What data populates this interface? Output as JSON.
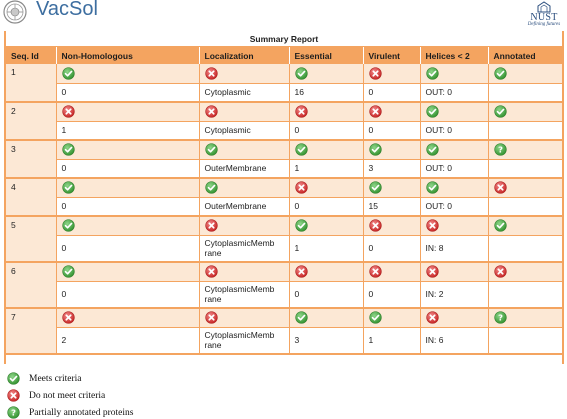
{
  "app": {
    "title": "VacSol"
  },
  "logo_right": {
    "name": "NUST",
    "tagline": "Defining futures"
  },
  "report": {
    "title": "Summary Report",
    "columns": [
      "Seq. Id",
      "Non-Homologous",
      "Localization",
      "Essential",
      "Virulent",
      "Helices < 2",
      "Annotated"
    ],
    "rows": [
      {
        "id": "1",
        "icons": [
          "check",
          "cross",
          "check",
          "cross",
          "check",
          "check"
        ],
        "values": [
          "0",
          "Cytoplasmic",
          "16",
          "0",
          "OUT: 0",
          ""
        ]
      },
      {
        "id": "2",
        "icons": [
          "cross",
          "cross",
          "cross",
          "cross",
          "check",
          "check"
        ],
        "values": [
          "1",
          "Cytoplasmic",
          "0",
          "0",
          "OUT: 0",
          ""
        ]
      },
      {
        "id": "3",
        "icons": [
          "check",
          "check",
          "check",
          "check",
          "check",
          "question"
        ],
        "values": [
          "0",
          "OuterMembrane",
          "1",
          "3",
          "OUT: 0",
          ""
        ]
      },
      {
        "id": "4",
        "icons": [
          "check",
          "check",
          "cross",
          "check",
          "check",
          "cross"
        ],
        "values": [
          "0",
          "OuterMembrane",
          "0",
          "15",
          "OUT: 0",
          ""
        ]
      },
      {
        "id": "5",
        "icons": [
          "check",
          "cross",
          "check",
          "cross",
          "cross",
          "check"
        ],
        "values": [
          "0",
          "CytoplasmicMembrane",
          "1",
          "0",
          "IN: 8",
          ""
        ]
      },
      {
        "id": "6",
        "icons": [
          "check",
          "cross",
          "cross",
          "cross",
          "cross",
          "cross"
        ],
        "values": [
          "0",
          "CytoplasmicMembrane",
          "0",
          "0",
          "IN: 2",
          ""
        ]
      },
      {
        "id": "7",
        "icons": [
          "cross",
          "cross",
          "check",
          "check",
          "cross",
          "question"
        ],
        "values": [
          "2",
          "CytoplasmicMembrane",
          "3",
          "1",
          "IN: 6",
          ""
        ]
      }
    ]
  },
  "legend": [
    {
      "icon": "check",
      "label": "Meets criteria"
    },
    {
      "icon": "cross",
      "label": "Do not meet criteria"
    },
    {
      "icon": "question",
      "label": "Partially annotated proteins"
    }
  ],
  "colors": {
    "header_orange": "#f4a460",
    "row_tint": "#fce8d5",
    "check_green": "#3fa33b",
    "cross_red": "#d42a2a",
    "title_blue": "#3d6ea0"
  }
}
